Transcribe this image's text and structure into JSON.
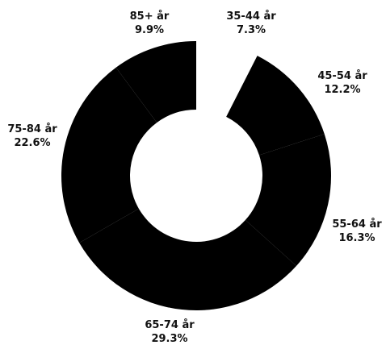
{
  "chart_data": {
    "type": "pie",
    "variant": "donut",
    "categories": [
      "35-44 år",
      "45-54 år",
      "55-64 år",
      "65-74 år",
      "75-84 år",
      "85+ år"
    ],
    "values": [
      7.3,
      12.2,
      16.3,
      29.3,
      22.6,
      9.9
    ],
    "value_labels": [
      "7.3%",
      "12.2%",
      "16.3%",
      "29.3%",
      "22.6%",
      "9.9%"
    ],
    "colors": [
      "#ffffff",
      "#000000",
      "#000000",
      "#000000",
      "#000000",
      "#000000"
    ],
    "legend": "none"
  }
}
